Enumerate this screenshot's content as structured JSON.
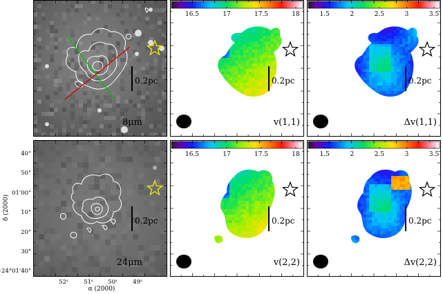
{
  "colorbars": {
    "velocity": {
      "ticks": [
        "16.5",
        "17",
        "17.5",
        "18"
      ],
      "values": [
        16.5,
        17,
        17.5,
        18
      ],
      "range": [
        16.2,
        18.1
      ]
    },
    "width": {
      "ticks": [
        "1.5",
        "2",
        "2.5",
        "3",
        "3.5"
      ],
      "values": [
        1.5,
        2,
        2.5,
        3,
        3.5
      ],
      "range": [
        1.2,
        3.6
      ]
    }
  },
  "panels": [
    {
      "id": "ir8",
      "row": 0,
      "col": 0,
      "type": "infrared",
      "label": "8μm"
    },
    {
      "id": "v11",
      "row": 0,
      "col": 1,
      "type": "velocity",
      "label": "v(1,1)"
    },
    {
      "id": "dv11",
      "row": 0,
      "col": 2,
      "type": "width",
      "label": "Δv(1,1)"
    },
    {
      "id": "ir24",
      "row": 1,
      "col": 0,
      "type": "infrared",
      "label": "24μm"
    },
    {
      "id": "v22",
      "row": 1,
      "col": 1,
      "type": "velocity",
      "label": "v(2,2)"
    },
    {
      "id": "dv22",
      "row": 1,
      "col": 2,
      "type": "width",
      "label": "Δv(2,2)"
    }
  ],
  "scalebar_label": "0.2pc",
  "axes": {
    "ylabel": "δ (2000)",
    "xlabel": "α (2000)",
    "yticks": [
      "40\"",
      "50\"",
      "01'00\"",
      "10\"",
      "20\"",
      "30\"",
      "−24°01'40\""
    ],
    "xticks": [
      "52ˢ",
      "51ˢ",
      "50ˢ",
      "49ˢ"
    ]
  },
  "colors": {
    "star_ir": "#f5e600",
    "star_map": "#000000",
    "contour": "#ffffff",
    "cut_green": "#00c000",
    "cut_red": "#d00000"
  }
}
